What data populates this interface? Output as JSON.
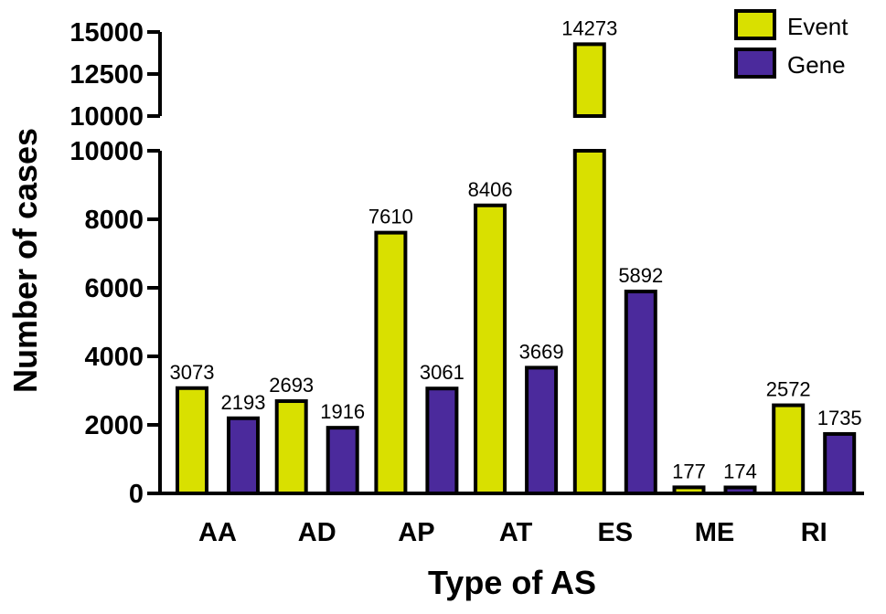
{
  "chart_data": {
    "type": "bar",
    "xlabel": "Type of AS",
    "ylabel": "Number of cases",
    "categories": [
      "AA",
      "AD",
      "AP",
      "AT",
      "ES",
      "ME",
      "RI"
    ],
    "series": [
      {
        "name": "Event",
        "color": "#d9e000",
        "values": [
          3073,
          2693,
          7610,
          8406,
          14273,
          177,
          2572
        ]
      },
      {
        "name": "Gene",
        "color": "#4b2a9c",
        "values": [
          2193,
          1916,
          3061,
          3669,
          5892,
          174,
          1735
        ]
      }
    ],
    "y_axis": {
      "broken": true,
      "lower_segment": {
        "range": [
          0,
          10000
        ],
        "ticks": [
          "0",
          "2000",
          "4000",
          "6000",
          "8000",
          "10000"
        ]
      },
      "upper_segment": {
        "range": [
          10000,
          15000
        ],
        "ticks": [
          "10000",
          "12500",
          "15000"
        ]
      }
    },
    "legend": {
      "position": "top-right"
    },
    "grid": false
  }
}
